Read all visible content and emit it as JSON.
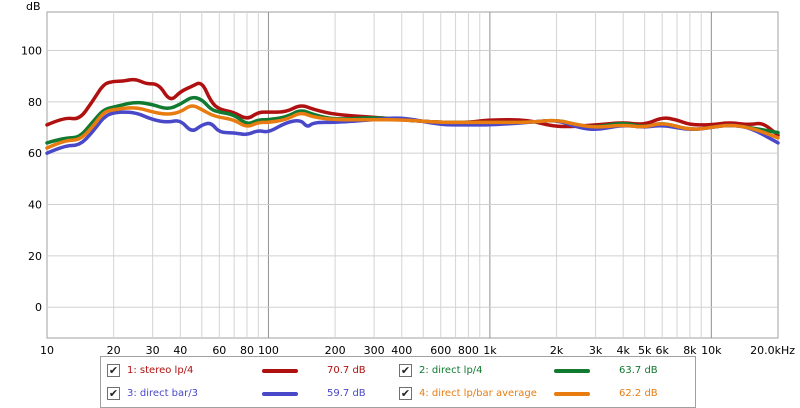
{
  "chart_data": {
    "type": "line",
    "title": "",
    "ylabel": "dB",
    "xlabel": "",
    "xscale": "log",
    "xlim": [
      10,
      20000
    ],
    "ylim": [
      -12,
      115
    ],
    "grid": true,
    "yticks": [
      0,
      20,
      40,
      60,
      80,
      100
    ],
    "xticks": [
      {
        "v": 10,
        "label": "10"
      },
      {
        "v": 20,
        "label": "20"
      },
      {
        "v": 30,
        "label": "30"
      },
      {
        "v": 40,
        "label": "40"
      },
      {
        "v": 60,
        "label": "60"
      },
      {
        "v": 80,
        "label": "80"
      },
      {
        "v": 100,
        "label": "100"
      },
      {
        "v": 200,
        "label": "200"
      },
      {
        "v": 300,
        "label": "300"
      },
      {
        "v": 400,
        "label": "400"
      },
      {
        "v": 600,
        "label": "600"
      },
      {
        "v": 800,
        "label": "800"
      },
      {
        "v": 1000,
        "label": "1k"
      },
      {
        "v": 2000,
        "label": "2k"
      },
      {
        "v": 3000,
        "label": "3k"
      },
      {
        "v": 4000,
        "label": "4k"
      },
      {
        "v": 5000,
        "label": "5k"
      },
      {
        "v": 6000,
        "label": "6k"
      },
      {
        "v": 8000,
        "label": "8k"
      },
      {
        "v": 10000,
        "label": "10k"
      },
      {
        "v": 20000,
        "label": "20.0kHz"
      }
    ],
    "series": [
      {
        "name": "1: stereo lp/4",
        "value": "70.7 dB",
        "color": "#b01010",
        "points": [
          [
            10,
            71
          ],
          [
            12,
            74
          ],
          [
            14,
            73
          ],
          [
            16,
            80
          ],
          [
            18,
            87
          ],
          [
            20,
            88
          ],
          [
            22,
            88
          ],
          [
            25,
            89
          ],
          [
            28,
            87
          ],
          [
            32,
            87
          ],
          [
            36,
            80
          ],
          [
            40,
            84
          ],
          [
            45,
            86
          ],
          [
            50,
            88
          ],
          [
            55,
            80
          ],
          [
            60,
            77
          ],
          [
            70,
            76
          ],
          [
            80,
            73
          ],
          [
            90,
            76
          ],
          [
            100,
            76
          ],
          [
            120,
            76
          ],
          [
            140,
            79
          ],
          [
            160,
            77
          ],
          [
            200,
            75
          ],
          [
            300,
            74
          ],
          [
            400,
            73
          ],
          [
            600,
            72
          ],
          [
            800,
            72
          ],
          [
            1000,
            73
          ],
          [
            1500,
            73
          ],
          [
            2000,
            70
          ],
          [
            3000,
            71
          ],
          [
            4000,
            72
          ],
          [
            5000,
            71
          ],
          [
            6000,
            74
          ],
          [
            7000,
            73
          ],
          [
            8000,
            71
          ],
          [
            10000,
            71
          ],
          [
            12000,
            72
          ],
          [
            15000,
            71
          ],
          [
            17000,
            72
          ],
          [
            20000,
            67
          ]
        ]
      },
      {
        "name": "2: direct lp/4",
        "value": "63.7 dB",
        "color": "#107a30",
        "points": [
          [
            10,
            64
          ],
          [
            12,
            66
          ],
          [
            14,
            66
          ],
          [
            16,
            72
          ],
          [
            18,
            77
          ],
          [
            20,
            78
          ],
          [
            25,
            80
          ],
          [
            30,
            79
          ],
          [
            35,
            77
          ],
          [
            40,
            79
          ],
          [
            45,
            82
          ],
          [
            50,
            81
          ],
          [
            55,
            77
          ],
          [
            60,
            76
          ],
          [
            70,
            75
          ],
          [
            80,
            71
          ],
          [
            90,
            73
          ],
          [
            100,
            73
          ],
          [
            120,
            74
          ],
          [
            140,
            77
          ],
          [
            160,
            75
          ],
          [
            200,
            73
          ],
          [
            300,
            74
          ],
          [
            400,
            73
          ],
          [
            600,
            72
          ],
          [
            800,
            72
          ],
          [
            1000,
            72
          ],
          [
            1500,
            72
          ],
          [
            2000,
            73
          ],
          [
            2500,
            71
          ],
          [
            3000,
            70
          ],
          [
            4000,
            72
          ],
          [
            5000,
            70
          ],
          [
            6000,
            72
          ],
          [
            8000,
            69
          ],
          [
            10000,
            70
          ],
          [
            12000,
            71
          ],
          [
            15000,
            70
          ],
          [
            20000,
            68
          ]
        ]
      },
      {
        "name": "3: direct bar/3",
        "value": "59.7 dB",
        "color": "#4848c8",
        "points": [
          [
            10,
            60
          ],
          [
            12,
            63
          ],
          [
            14,
            63
          ],
          [
            16,
            68
          ],
          [
            18,
            74
          ],
          [
            20,
            76
          ],
          [
            25,
            76
          ],
          [
            30,
            73
          ],
          [
            35,
            72
          ],
          [
            40,
            73
          ],
          [
            45,
            68
          ],
          [
            50,
            71
          ],
          [
            55,
            72
          ],
          [
            60,
            68
          ],
          [
            70,
            68
          ],
          [
            80,
            67
          ],
          [
            90,
            69
          ],
          [
            100,
            68
          ],
          [
            120,
            72
          ],
          [
            140,
            73
          ],
          [
            150,
            70
          ],
          [
            160,
            72
          ],
          [
            200,
            72
          ],
          [
            300,
            73
          ],
          [
            400,
            74
          ],
          [
            600,
            71
          ],
          [
            800,
            71
          ],
          [
            1000,
            71
          ],
          [
            1500,
            72
          ],
          [
            2000,
            73
          ],
          [
            2500,
            70
          ],
          [
            3000,
            69
          ],
          [
            4000,
            71
          ],
          [
            5000,
            70
          ],
          [
            6000,
            71
          ],
          [
            8000,
            69
          ],
          [
            10000,
            70
          ],
          [
            12000,
            71
          ],
          [
            15000,
            70
          ],
          [
            20000,
            64
          ]
        ]
      },
      {
        "name": "4: direct lp/bar average",
        "value": "62.2 dB",
        "color": "#e87c10",
        "points": [
          [
            10,
            62
          ],
          [
            12,
            65
          ],
          [
            14,
            65
          ],
          [
            16,
            70
          ],
          [
            18,
            76
          ],
          [
            20,
            77
          ],
          [
            25,
            78
          ],
          [
            30,
            76
          ],
          [
            35,
            75
          ],
          [
            40,
            76
          ],
          [
            45,
            79
          ],
          [
            50,
            77
          ],
          [
            55,
            75
          ],
          [
            60,
            74
          ],
          [
            70,
            73
          ],
          [
            80,
            70
          ],
          [
            90,
            72
          ],
          [
            100,
            72
          ],
          [
            120,
            73
          ],
          [
            140,
            76
          ],
          [
            160,
            74
          ],
          [
            200,
            73
          ],
          [
            300,
            73
          ],
          [
            400,
            73
          ],
          [
            600,
            72
          ],
          [
            800,
            72
          ],
          [
            1000,
            72
          ],
          [
            1500,
            72
          ],
          [
            2000,
            73
          ],
          [
            2500,
            71
          ],
          [
            3000,
            70
          ],
          [
            4000,
            71
          ],
          [
            5000,
            70
          ],
          [
            6000,
            72
          ],
          [
            8000,
            69
          ],
          [
            10000,
            70
          ],
          [
            12000,
            71
          ],
          [
            15000,
            70
          ],
          [
            20000,
            66
          ]
        ]
      }
    ]
  }
}
